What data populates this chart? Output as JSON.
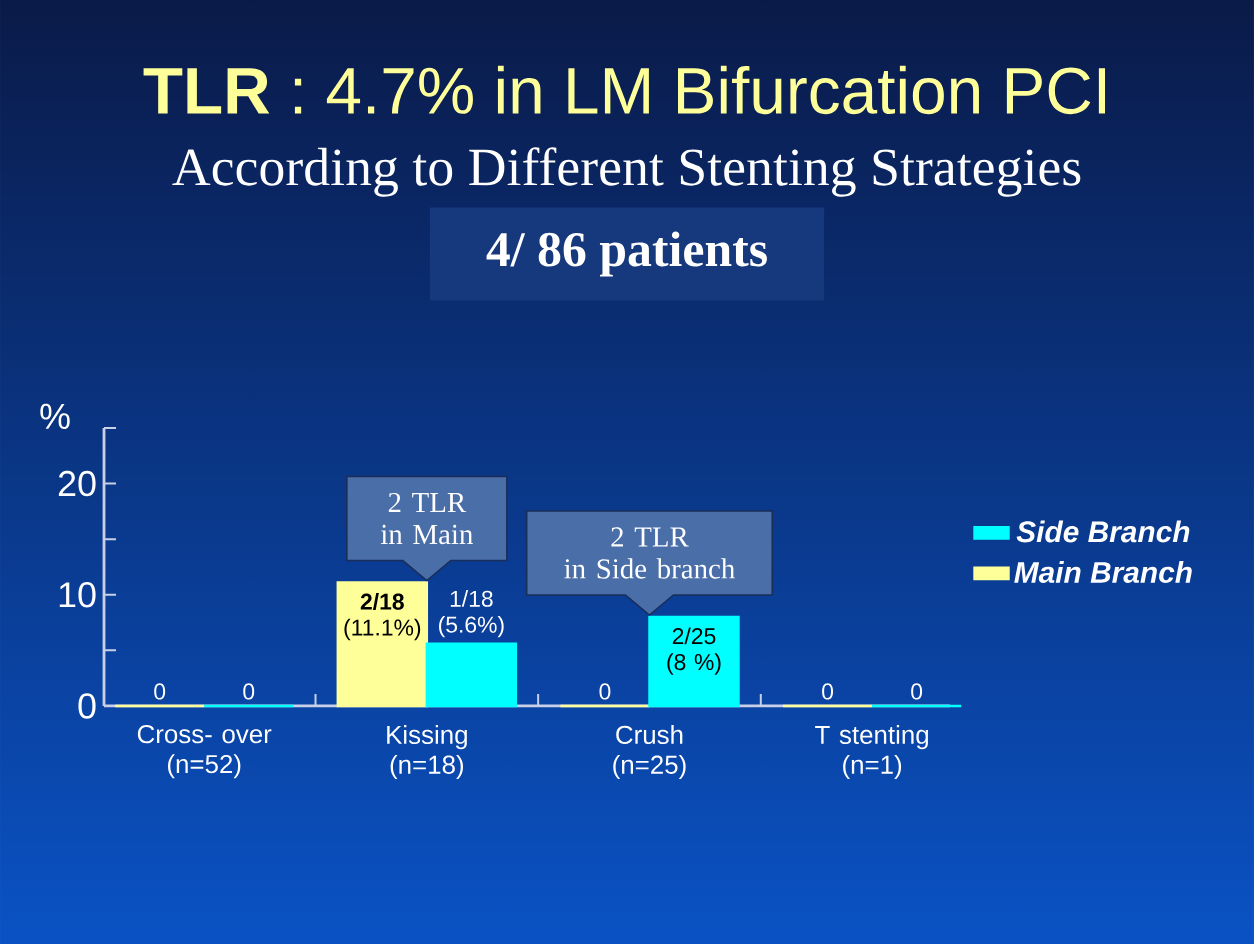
{
  "chart_data": {
    "type": "bar",
    "title": "**TLR** : 4.7% in LM Bifurcation PCI",
    "subtitle": "According to Different Stenting Strategies",
    "ylabel": "%",
    "categories": [
      "Cross- over\n(n=52)",
      "Kissing\n(n=18)",
      "Crush\n(n=25)",
      "T stenting\n(n=1)"
    ],
    "series": [
      {
        "name": "Main Branch",
        "color": "#ffff99",
        "values": [
          0,
          11.1,
          0,
          0
        ],
        "value_labels": [
          "0",
          "**2/18**\n(11.1%)",
          "0",
          "0"
        ]
      },
      {
        "name": "Side Branch",
        "color": "#00ffff",
        "values": [
          0,
          5.6,
          8,
          0
        ],
        "value_labels": [
          "0",
          "1/18\n(5.6%)",
          "2/25\n(8 %)",
          "0"
        ]
      }
    ],
    "ylim": [
      0,
      25
    ],
    "yticks": [
      0,
      {
        "value": 5,
        "label": null
      },
      10,
      {
        "value": 15,
        "label": null
      },
      20,
      {
        "value": 25,
        "label": null
      }
    ],
    "legend": "right",
    "annotations": [
      "4/ 86 patients",
      {
        "text": "2 TLR\nin Main",
        "x": "Kissing\n(n=18)",
        "y": 11.1
      },
      {
        "text": "2 TLR\nin Side branch",
        "x": "Crush\n(n=25)",
        "y": 8
      }
    ]
  }
}
